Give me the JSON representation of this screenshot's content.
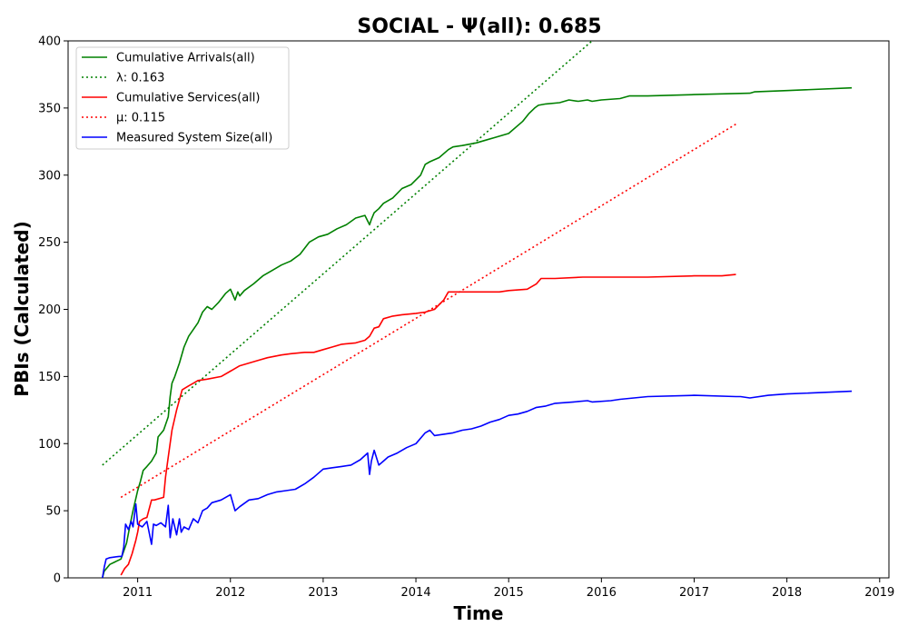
{
  "chart_data": {
    "type": "line",
    "title": "SOCIAL -  Ψ(all): 0.685",
    "xlabel": "Time",
    "ylabel": "PBIs (Calculated)",
    "xlim": [
      2010.25,
      2019.1
    ],
    "ylim": [
      0,
      400
    ],
    "xticks": [
      2011,
      2012,
      2013,
      2014,
      2015,
      2016,
      2017,
      2018,
      2019
    ],
    "yticks": [
      0,
      50,
      100,
      150,
      200,
      250,
      300,
      350,
      400
    ],
    "grid": false,
    "legend_position": "top-left",
    "series": [
      {
        "name": "Cumulative Arrivals(all)",
        "color": "#008000",
        "style": "solid",
        "x": [
          2010.62,
          2010.64,
          2010.7,
          2010.82,
          2010.84,
          2010.88,
          2010.92,
          2010.95,
          2011.0,
          2011.03,
          2011.06,
          2011.1,
          2011.15,
          2011.2,
          2011.22,
          2011.28,
          2011.33,
          2011.35,
          2011.37,
          2011.4,
          2011.45,
          2011.5,
          2011.55,
          2011.6,
          2011.65,
          2011.7,
          2011.75,
          2011.8,
          2011.87,
          2011.95,
          2012.0,
          2012.05,
          2012.08,
          2012.1,
          2012.15,
          2012.25,
          2012.35,
          2012.45,
          2012.55,
          2012.65,
          2012.75,
          2012.85,
          2012.95,
          2013.05,
          2013.15,
          2013.25,
          2013.35,
          2013.45,
          2013.5,
          2013.52,
          2013.55,
          2013.6,
          2013.65,
          2013.75,
          2013.85,
          2013.95,
          2014.05,
          2014.1,
          2014.15,
          2014.25,
          2014.35,
          2014.4,
          2014.5,
          2014.65,
          2014.75,
          2014.85,
          2015.0,
          2015.15,
          2015.22,
          2015.28,
          2015.32,
          2015.4,
          2015.55,
          2015.65,
          2015.75,
          2015.85,
          2015.9,
          2016.0,
          2016.2,
          2016.3,
          2016.5,
          2017.0,
          2017.6,
          2017.65,
          2018.0,
          2018.7
        ],
        "y": [
          0,
          5,
          10,
          14,
          18,
          26,
          40,
          50,
          65,
          72,
          80,
          83,
          87,
          93,
          105,
          110,
          120,
          135,
          145,
          150,
          160,
          172,
          180,
          185,
          190,
          198,
          202,
          200,
          205,
          212,
          215,
          207,
          213,
          210,
          214,
          219,
          225,
          229,
          233,
          236,
          241,
          250,
          254,
          256,
          260,
          263,
          268,
          270,
          263,
          267,
          272,
          275,
          279,
          283,
          290,
          293,
          300,
          308,
          310,
          313,
          319,
          321,
          322,
          324,
          326,
          328,
          331,
          340,
          346,
          350,
          352,
          353,
          354,
          356,
          355,
          356,
          355,
          356,
          357,
          359,
          359,
          360,
          361,
          362,
          363,
          365
        ]
      },
      {
        "name": "λ: 0.163",
        "color": "#008000",
        "style": "dotted",
        "x": [
          2010.62,
          2015.95
        ],
        "y": [
          84,
          403
        ]
      },
      {
        "name": "Cumulative Services(all)",
        "color": "#ff0000",
        "style": "solid",
        "x": [
          2010.82,
          2010.86,
          2010.9,
          2010.94,
          2010.98,
          2011.0,
          2011.02,
          2011.06,
          2011.1,
          2011.15,
          2011.18,
          2011.28,
          2011.3,
          2011.33,
          2011.37,
          2011.42,
          2011.48,
          2011.55,
          2011.6,
          2011.65,
          2011.75,
          2011.9,
          2012.0,
          2012.1,
          2012.2,
          2012.3,
          2012.4,
          2012.55,
          2012.65,
          2012.8,
          2012.9,
          2013.0,
          2013.1,
          2013.2,
          2013.35,
          2013.45,
          2013.5,
          2013.55,
          2013.6,
          2013.65,
          2013.75,
          2013.85,
          2014.0,
          2014.1,
          2014.15,
          2014.2,
          2014.3,
          2014.35,
          2014.5,
          2014.7,
          2014.9,
          2015.0,
          2015.2,
          2015.3,
          2015.35,
          2015.5,
          2015.8,
          2016.0,
          2016.5,
          2017.0,
          2017.3,
          2017.45
        ],
        "y": [
          2,
          7,
          10,
          18,
          28,
          34,
          42,
          44,
          45,
          58,
          58,
          60,
          75,
          90,
          110,
          125,
          140,
          143,
          145,
          147,
          148,
          150,
          154,
          158,
          160,
          162,
          164,
          166,
          167,
          168,
          168,
          170,
          172,
          174,
          175,
          177,
          180,
          186,
          187,
          193,
          195,
          196,
          197,
          198,
          199,
          200,
          207,
          213,
          213,
          213,
          213,
          214,
          215,
          219,
          223,
          223,
          224,
          224,
          224,
          225,
          225,
          226
        ]
      },
      {
        "name": "μ: 0.115",
        "color": "#ff0000",
        "style": "dotted",
        "x": [
          2010.82,
          2017.45
        ],
        "y": [
          60,
          338
        ]
      },
      {
        "name": "Measured System Size(all)",
        "color": "#0000ff",
        "style": "solid",
        "x": [
          2010.62,
          2010.64,
          2010.66,
          2010.7,
          2010.8,
          2010.83,
          2010.85,
          2010.87,
          2010.9,
          2010.93,
          2010.95,
          2010.98,
          2011.0,
          2011.05,
          2011.1,
          2011.15,
          2011.17,
          2011.2,
          2011.25,
          2011.3,
          2011.33,
          2011.35,
          2011.38,
          2011.42,
          2011.45,
          2011.47,
          2011.5,
          2011.55,
          2011.6,
          2011.65,
          2011.7,
          2011.75,
          2011.8,
          2011.9,
          2012.0,
          2012.05,
          2012.1,
          2012.2,
          2012.3,
          2012.4,
          2012.5,
          2012.6,
          2012.7,
          2012.8,
          2012.9,
          2013.0,
          2013.1,
          2013.2,
          2013.3,
          2013.4,
          2013.48,
          2013.5,
          2013.52,
          2013.55,
          2013.6,
          2013.65,
          2013.7,
          2013.8,
          2013.9,
          2014.0,
          2014.1,
          2014.15,
          2014.2,
          2014.3,
          2014.4,
          2014.5,
          2014.6,
          2014.7,
          2014.8,
          2014.9,
          2015.0,
          2015.1,
          2015.2,
          2015.3,
          2015.4,
          2015.5,
          2015.7,
          2015.85,
          2015.9,
          2016.1,
          2016.2,
          2016.5,
          2017.0,
          2017.45,
          2017.5,
          2017.6,
          2017.8,
          2018.0,
          2018.7
        ],
        "y": [
          0,
          8,
          14,
          15,
          16,
          16,
          23,
          40,
          36,
          42,
          38,
          55,
          40,
          38,
          42,
          25,
          40,
          39,
          41,
          38,
          54,
          30,
          44,
          32,
          44,
          34,
          38,
          36,
          44,
          41,
          50,
          52,
          56,
          58,
          62,
          50,
          53,
          58,
          59,
          62,
          64,
          65,
          66,
          70,
          75,
          81,
          82,
          83,
          84,
          88,
          93,
          77,
          87,
          95,
          84,
          87,
          90,
          93,
          97,
          100,
          108,
          110,
          106,
          107,
          108,
          110,
          111,
          113,
          116,
          118,
          121,
          122,
          124,
          127,
          128,
          130,
          131,
          132,
          131,
          132,
          133,
          135,
          136,
          135,
          135,
          134,
          136,
          137,
          139
        ]
      }
    ]
  }
}
